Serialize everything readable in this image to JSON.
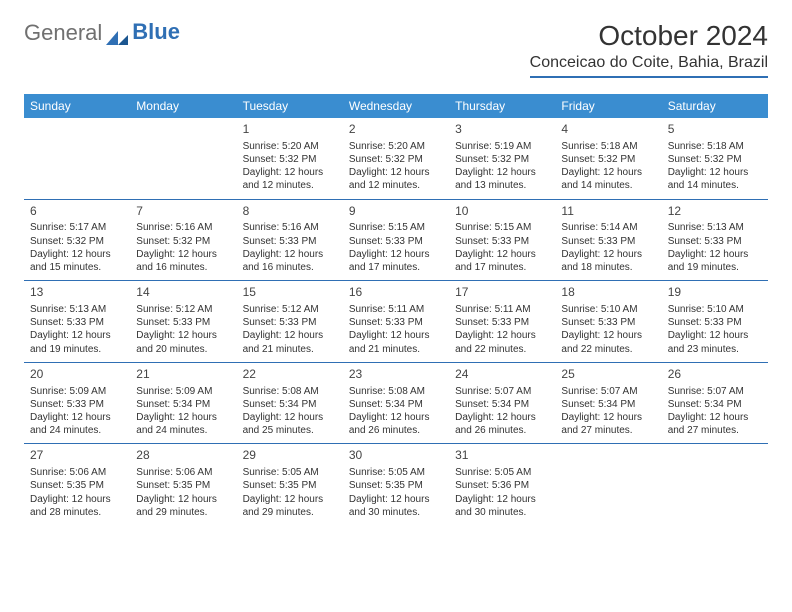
{
  "brand": {
    "part1": "General",
    "part2": "Blue"
  },
  "title": "October 2024",
  "location": "Conceicao do Coite, Bahia, Brazil",
  "colors": {
    "headerBg": "#3a8dd0",
    "ruler": "#2f6fb4",
    "text": "#333333"
  },
  "dayHeaders": [
    "Sunday",
    "Monday",
    "Tuesday",
    "Wednesday",
    "Thursday",
    "Friday",
    "Saturday"
  ],
  "weeks": [
    [
      null,
      null,
      {
        "n": "1",
        "sr": "Sunrise: 5:20 AM",
        "ss": "Sunset: 5:32 PM",
        "dl": "Daylight: 12 hours and 12 minutes."
      },
      {
        "n": "2",
        "sr": "Sunrise: 5:20 AM",
        "ss": "Sunset: 5:32 PM",
        "dl": "Daylight: 12 hours and 12 minutes."
      },
      {
        "n": "3",
        "sr": "Sunrise: 5:19 AM",
        "ss": "Sunset: 5:32 PM",
        "dl": "Daylight: 12 hours and 13 minutes."
      },
      {
        "n": "4",
        "sr": "Sunrise: 5:18 AM",
        "ss": "Sunset: 5:32 PM",
        "dl": "Daylight: 12 hours and 14 minutes."
      },
      {
        "n": "5",
        "sr": "Sunrise: 5:18 AM",
        "ss": "Sunset: 5:32 PM",
        "dl": "Daylight: 12 hours and 14 minutes."
      }
    ],
    [
      {
        "n": "6",
        "sr": "Sunrise: 5:17 AM",
        "ss": "Sunset: 5:32 PM",
        "dl": "Daylight: 12 hours and 15 minutes."
      },
      {
        "n": "7",
        "sr": "Sunrise: 5:16 AM",
        "ss": "Sunset: 5:32 PM",
        "dl": "Daylight: 12 hours and 16 minutes."
      },
      {
        "n": "8",
        "sr": "Sunrise: 5:16 AM",
        "ss": "Sunset: 5:33 PM",
        "dl": "Daylight: 12 hours and 16 minutes."
      },
      {
        "n": "9",
        "sr": "Sunrise: 5:15 AM",
        "ss": "Sunset: 5:33 PM",
        "dl": "Daylight: 12 hours and 17 minutes."
      },
      {
        "n": "10",
        "sr": "Sunrise: 5:15 AM",
        "ss": "Sunset: 5:33 PM",
        "dl": "Daylight: 12 hours and 17 minutes."
      },
      {
        "n": "11",
        "sr": "Sunrise: 5:14 AM",
        "ss": "Sunset: 5:33 PM",
        "dl": "Daylight: 12 hours and 18 minutes."
      },
      {
        "n": "12",
        "sr": "Sunrise: 5:13 AM",
        "ss": "Sunset: 5:33 PM",
        "dl": "Daylight: 12 hours and 19 minutes."
      }
    ],
    [
      {
        "n": "13",
        "sr": "Sunrise: 5:13 AM",
        "ss": "Sunset: 5:33 PM",
        "dl": "Daylight: 12 hours and 19 minutes."
      },
      {
        "n": "14",
        "sr": "Sunrise: 5:12 AM",
        "ss": "Sunset: 5:33 PM",
        "dl": "Daylight: 12 hours and 20 minutes."
      },
      {
        "n": "15",
        "sr": "Sunrise: 5:12 AM",
        "ss": "Sunset: 5:33 PM",
        "dl": "Daylight: 12 hours and 21 minutes."
      },
      {
        "n": "16",
        "sr": "Sunrise: 5:11 AM",
        "ss": "Sunset: 5:33 PM",
        "dl": "Daylight: 12 hours and 21 minutes."
      },
      {
        "n": "17",
        "sr": "Sunrise: 5:11 AM",
        "ss": "Sunset: 5:33 PM",
        "dl": "Daylight: 12 hours and 22 minutes."
      },
      {
        "n": "18",
        "sr": "Sunrise: 5:10 AM",
        "ss": "Sunset: 5:33 PM",
        "dl": "Daylight: 12 hours and 22 minutes."
      },
      {
        "n": "19",
        "sr": "Sunrise: 5:10 AM",
        "ss": "Sunset: 5:33 PM",
        "dl": "Daylight: 12 hours and 23 minutes."
      }
    ],
    [
      {
        "n": "20",
        "sr": "Sunrise: 5:09 AM",
        "ss": "Sunset: 5:33 PM",
        "dl": "Daylight: 12 hours and 24 minutes."
      },
      {
        "n": "21",
        "sr": "Sunrise: 5:09 AM",
        "ss": "Sunset: 5:34 PM",
        "dl": "Daylight: 12 hours and 24 minutes."
      },
      {
        "n": "22",
        "sr": "Sunrise: 5:08 AM",
        "ss": "Sunset: 5:34 PM",
        "dl": "Daylight: 12 hours and 25 minutes."
      },
      {
        "n": "23",
        "sr": "Sunrise: 5:08 AM",
        "ss": "Sunset: 5:34 PM",
        "dl": "Daylight: 12 hours and 26 minutes."
      },
      {
        "n": "24",
        "sr": "Sunrise: 5:07 AM",
        "ss": "Sunset: 5:34 PM",
        "dl": "Daylight: 12 hours and 26 minutes."
      },
      {
        "n": "25",
        "sr": "Sunrise: 5:07 AM",
        "ss": "Sunset: 5:34 PM",
        "dl": "Daylight: 12 hours and 27 minutes."
      },
      {
        "n": "26",
        "sr": "Sunrise: 5:07 AM",
        "ss": "Sunset: 5:34 PM",
        "dl": "Daylight: 12 hours and 27 minutes."
      }
    ],
    [
      {
        "n": "27",
        "sr": "Sunrise: 5:06 AM",
        "ss": "Sunset: 5:35 PM",
        "dl": "Daylight: 12 hours and 28 minutes."
      },
      {
        "n": "28",
        "sr": "Sunrise: 5:06 AM",
        "ss": "Sunset: 5:35 PM",
        "dl": "Daylight: 12 hours and 29 minutes."
      },
      {
        "n": "29",
        "sr": "Sunrise: 5:05 AM",
        "ss": "Sunset: 5:35 PM",
        "dl": "Daylight: 12 hours and 29 minutes."
      },
      {
        "n": "30",
        "sr": "Sunrise: 5:05 AM",
        "ss": "Sunset: 5:35 PM",
        "dl": "Daylight: 12 hours and 30 minutes."
      },
      {
        "n": "31",
        "sr": "Sunrise: 5:05 AM",
        "ss": "Sunset: 5:36 PM",
        "dl": "Daylight: 12 hours and 30 minutes."
      },
      null,
      null
    ]
  ]
}
